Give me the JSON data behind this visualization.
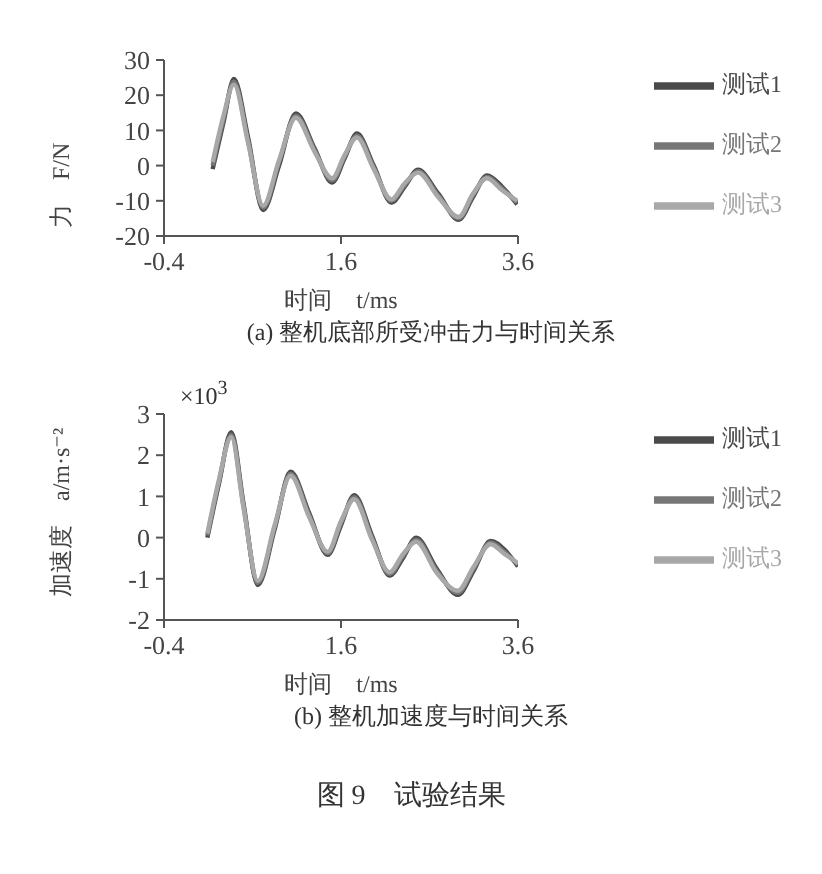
{
  "chart_data": [
    {
      "type": "line",
      "title": "(a) 整机底部所受冲击力与时间关系",
      "xlabel": "时间　t/ms",
      "ylabel": "力　F/N",
      "xlim": [
        -0.4,
        3.6
      ],
      "xticks": [
        -0.4,
        1.6,
        3.6
      ],
      "ylim": [
        -20,
        30
      ],
      "yticks": [
        -20,
        -10,
        0,
        10,
        20,
        30
      ],
      "legend": "top right",
      "marker": "none",
      "x": [
        0.15,
        0.27,
        0.39,
        0.55,
        0.72,
        0.9,
        1.09,
        1.3,
        1.5,
        1.64,
        1.78,
        1.97,
        2.17,
        2.32,
        2.47,
        2.7,
        2.93,
        3.09,
        3.25,
        3.42,
        3.59
      ],
      "series": [
        {
          "name": "测试1",
          "color": "#4a4a4a",
          "values": [
            -1,
            12,
            24.6,
            8,
            -12.6,
            0,
            14.8,
            5,
            -4.8,
            2,
            9.1,
            0,
            -10.5,
            -6,
            -1.2,
            -8,
            -15.4,
            -9,
            -2.8,
            -6,
            -11
          ]
        },
        {
          "name": "测试2",
          "color": "#777777",
          "values": [
            0,
            13,
            23.8,
            7,
            -12,
            1,
            14.2,
            4.5,
            -4.2,
            2.5,
            8.5,
            -0.5,
            -10,
            -5.5,
            -1.6,
            -8.5,
            -15,
            -8.5,
            -3.2,
            -6.5,
            -10.5
          ]
        },
        {
          "name": "测试3",
          "color": "#a8a8a8",
          "values": [
            1,
            14,
            23,
            6.5,
            -11.4,
            1.5,
            13.6,
            4,
            -3.6,
            3,
            8,
            -1,
            -9.6,
            -5,
            -2,
            -9,
            -14.6,
            -8,
            -3.6,
            -7,
            -10
          ]
        }
      ]
    },
    {
      "type": "line",
      "title": "(b) 整机加速度与时间关系",
      "xlabel": "时间　t/ms",
      "ylabel": "加速度　a/m·s⁻²",
      "annotations": [
        "×10$^{3}$",
        "图 9　试验结果"
      ],
      "xlim": [
        -0.4,
        3.6
      ],
      "xticks": [
        -0.4,
        1.6,
        3.6
      ],
      "ylim": [
        -2,
        3
      ],
      "yticks": [
        -2,
        -1,
        0,
        1,
        2,
        3
      ],
      "legend": "top right",
      "marker": "none",
      "x": [
        0.09,
        0.22,
        0.36,
        0.5,
        0.66,
        0.85,
        1.03,
        1.24,
        1.45,
        1.6,
        1.75,
        1.95,
        2.15,
        2.3,
        2.45,
        2.68,
        2.92,
        3.1,
        3.29,
        3.45,
        3.6
      ],
      "series": [
        {
          "name": "测试1",
          "color": "#4a4a4a",
          "values": [
            0,
            1.3,
            2.56,
            0.8,
            -1.15,
            0.2,
            1.6,
            0.6,
            -0.42,
            0.3,
            1.03,
            0.05,
            -0.92,
            -0.5,
            0,
            -0.75,
            -1.39,
            -0.8,
            -0.08,
            -0.3,
            -0.7
          ]
        },
        {
          "name": "测试2",
          "color": "#777777",
          "values": [
            0.05,
            1.35,
            2.5,
            0.75,
            -1.1,
            0.25,
            1.55,
            0.55,
            -0.38,
            0.35,
            0.98,
            0,
            -0.88,
            -0.45,
            -0.05,
            -0.8,
            -1.34,
            -0.75,
            -0.12,
            -0.35,
            -0.66
          ]
        },
        {
          "name": "测试3",
          "color": "#a8a8a8",
          "values": [
            0.1,
            1.4,
            2.44,
            0.7,
            -1.05,
            0.3,
            1.5,
            0.5,
            -0.34,
            0.4,
            0.93,
            -0.05,
            -0.84,
            -0.4,
            -0.1,
            -0.85,
            -1.29,
            -0.7,
            -0.16,
            -0.4,
            -0.62
          ]
        }
      ]
    }
  ]
}
